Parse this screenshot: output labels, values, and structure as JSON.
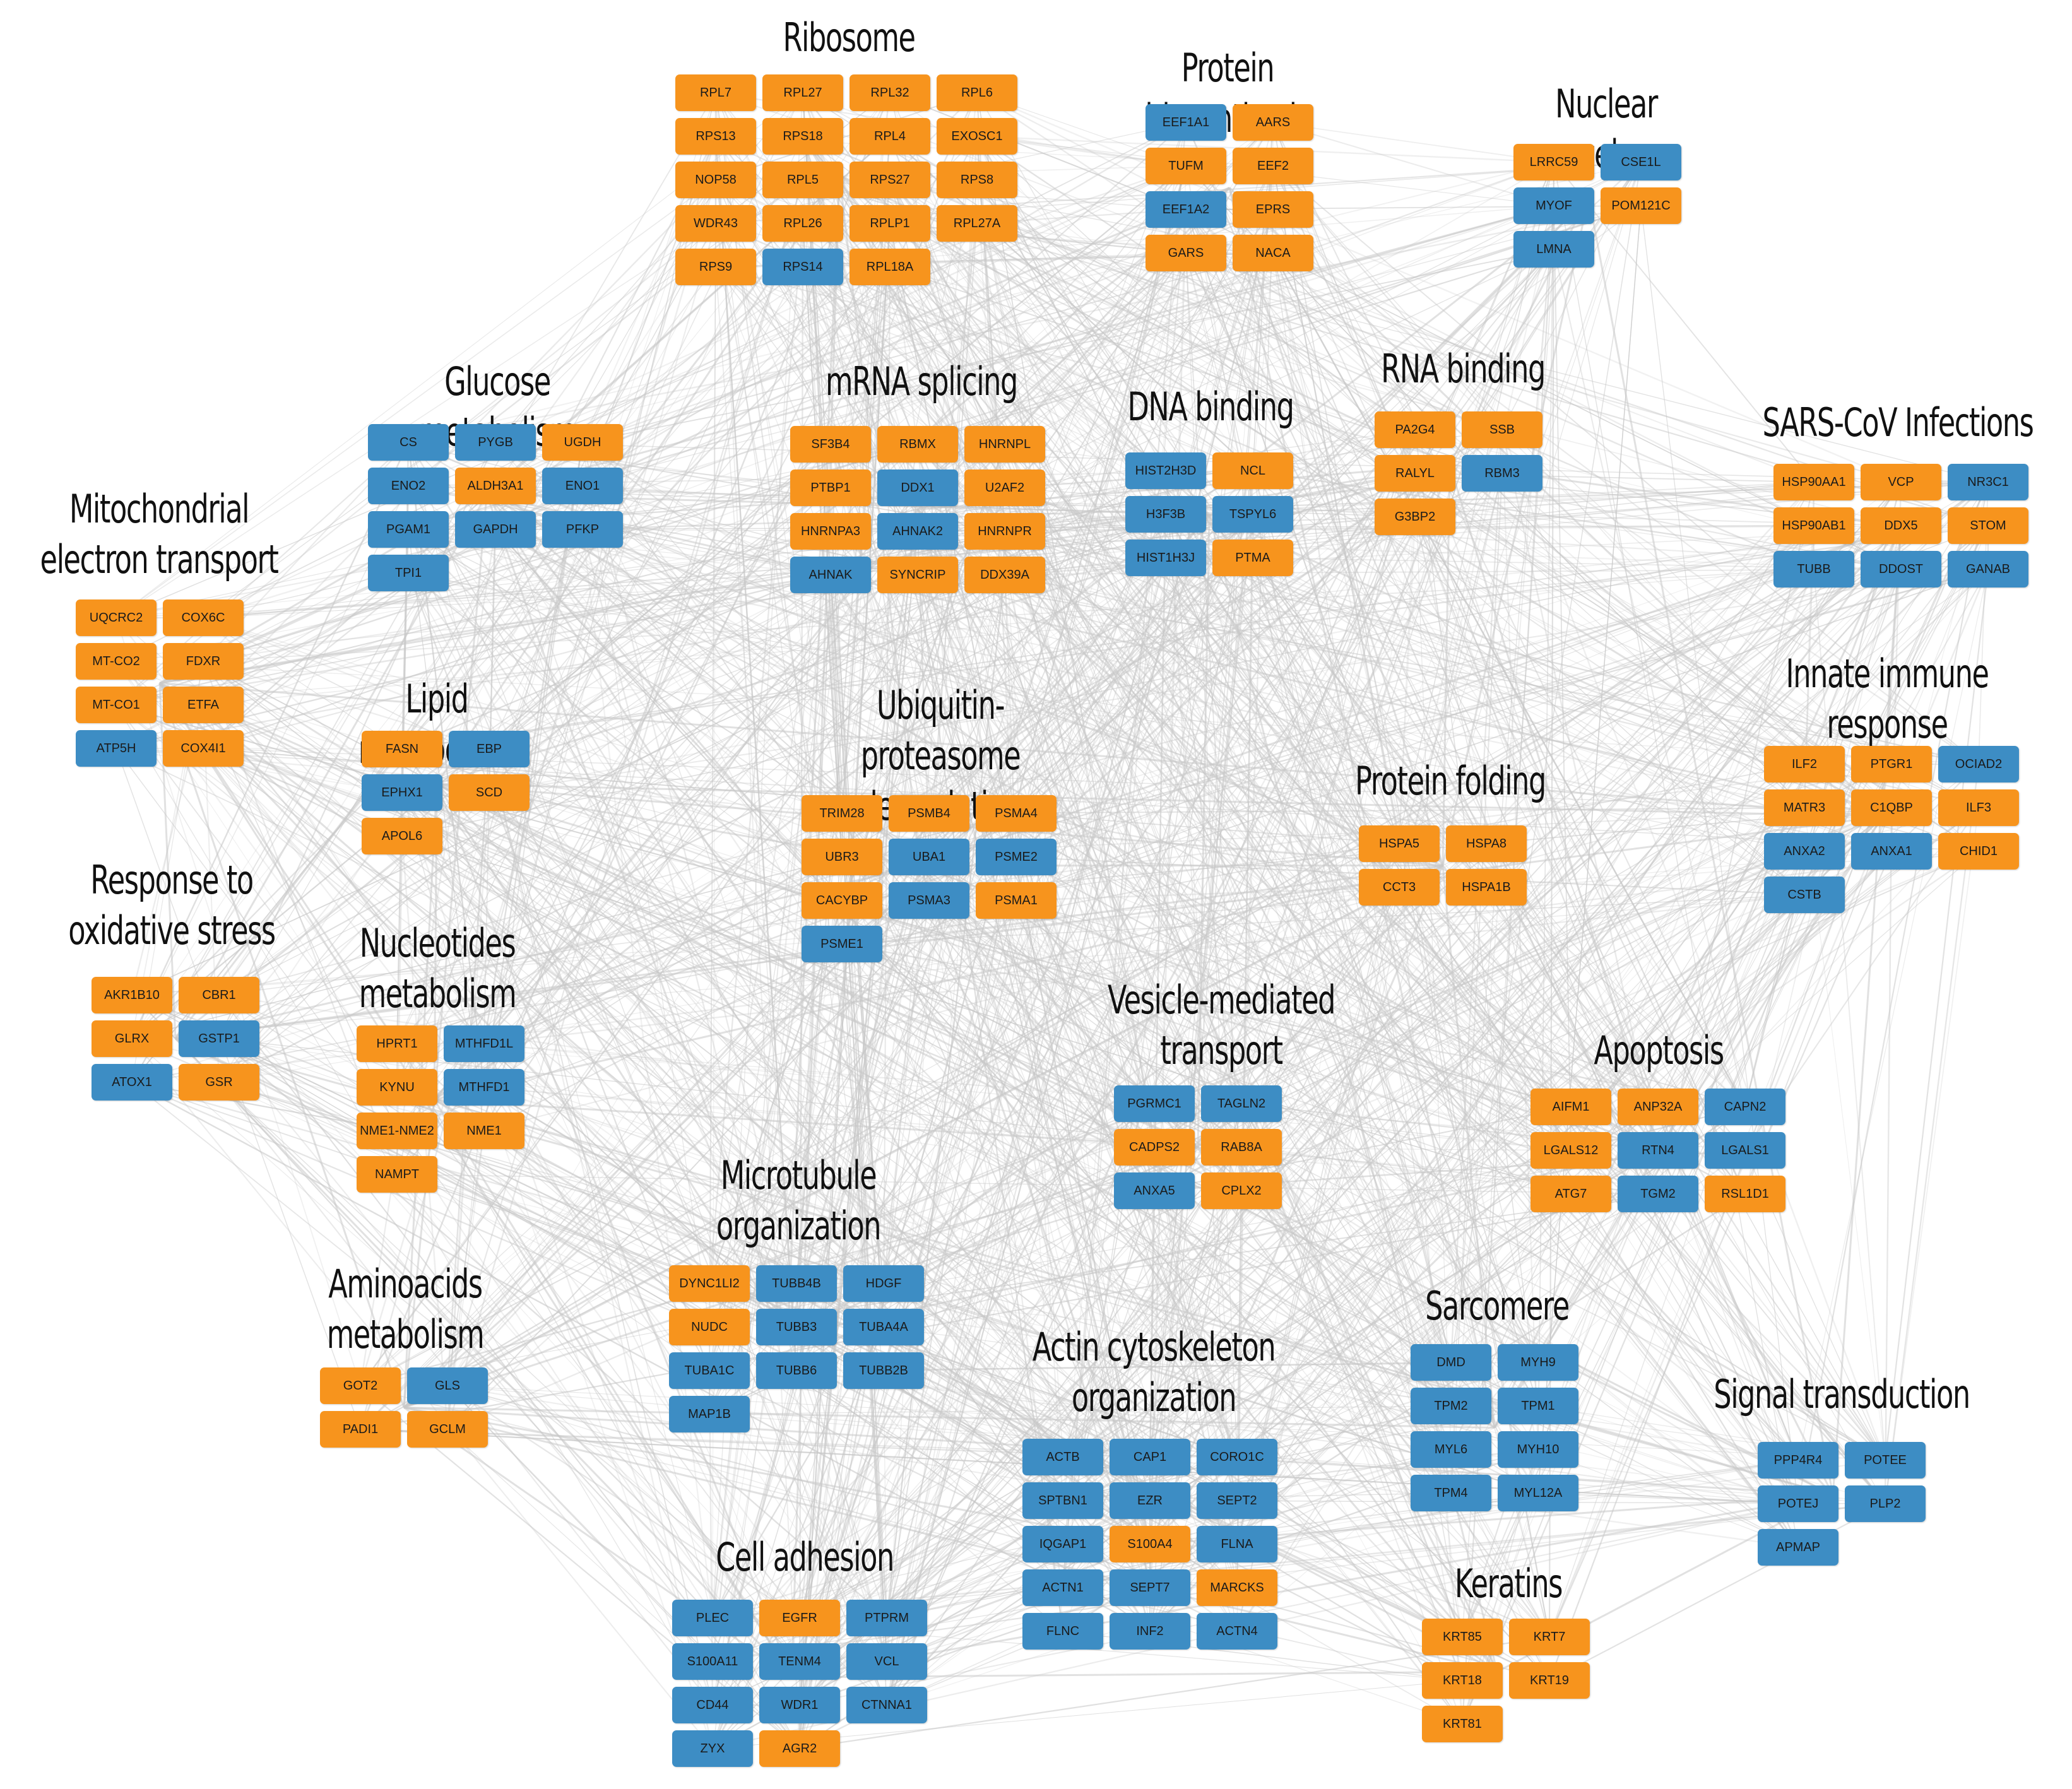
{
  "colors": {
    "orange": "#F7941D",
    "blue": "#3D8DC4",
    "edge": "#C8C8C8"
  },
  "clusters": [
    {
      "id": "ribosome",
      "title": "Ribosome",
      "cols": 4,
      "genes": [
        [
          "RPL7",
          "o"
        ],
        [
          "RPL27",
          "o"
        ],
        [
          "RPL32",
          "o"
        ],
        [
          "RPL6",
          "o"
        ],
        [
          "RPS13",
          "o"
        ],
        [
          "RPS18",
          "o"
        ],
        [
          "RPL4",
          "o"
        ],
        [
          "EXOSC1",
          "o"
        ],
        [
          "NOP58",
          "o"
        ],
        [
          "RPL5",
          "o"
        ],
        [
          "RPS27",
          "o"
        ],
        [
          "RPS8",
          "o"
        ],
        [
          "WDR43",
          "o"
        ],
        [
          "RPL26",
          "o"
        ],
        [
          "RPLP1",
          "o"
        ],
        [
          "RPL27A",
          "o"
        ],
        [
          "RPS9",
          "o"
        ],
        [
          "RPS14",
          "b"
        ],
        [
          "RPL18A",
          "o"
        ]
      ]
    },
    {
      "id": "protein-biosynthesis",
      "title": "Protein biosynthesis",
      "cols": 2,
      "genes": [
        [
          "EEF1A1",
          "b"
        ],
        [
          "AARS",
          "o"
        ],
        [
          "TUFM",
          "o"
        ],
        [
          "EEF2",
          "o"
        ],
        [
          "EEF1A2",
          "b"
        ],
        [
          "EPRS",
          "o"
        ],
        [
          "GARS",
          "o"
        ],
        [
          "NACA",
          "o"
        ]
      ]
    },
    {
      "id": "nuclear-envelope",
      "title": "Nuclear envelope",
      "cols": 2,
      "genes": [
        [
          "LRRC59",
          "o"
        ],
        [
          "CSE1L",
          "b"
        ],
        [
          "MYOF",
          "b"
        ],
        [
          "POM121C",
          "o"
        ],
        [
          "LMNA",
          "b"
        ]
      ]
    },
    {
      "id": "glucose-metabolism",
      "title": "Glucose metabolism",
      "cols": 3,
      "genes": [
        [
          "CS",
          "b"
        ],
        [
          "PYGB",
          "b"
        ],
        [
          "UGDH",
          "o"
        ],
        [
          "ENO2",
          "b"
        ],
        [
          "ALDH3A1",
          "o"
        ],
        [
          "ENO1",
          "b"
        ],
        [
          "PGAM1",
          "b"
        ],
        [
          "GAPDH",
          "b"
        ],
        [
          "PFKP",
          "b"
        ],
        [
          "TPI1",
          "b"
        ]
      ]
    },
    {
      "id": "mrna-splicing",
      "title": "mRNA splicing",
      "cols": 3,
      "genes": [
        [
          "SF3B4",
          "o"
        ],
        [
          "RBMX",
          "o"
        ],
        [
          "HNRNPL",
          "o"
        ],
        [
          "PTBP1",
          "o"
        ],
        [
          "DDX1",
          "b"
        ],
        [
          "U2AF2",
          "o"
        ],
        [
          "HNRNPA3",
          "o"
        ],
        [
          "AHNAK2",
          "b"
        ],
        [
          "HNRNPR",
          "o"
        ],
        [
          "AHNAK",
          "b"
        ],
        [
          "SYNCRIP",
          "o"
        ],
        [
          "DDX39A",
          "o"
        ]
      ]
    },
    {
      "id": "dna-binding",
      "title": "DNA binding",
      "cols": 2,
      "genes": [
        [
          "HIST2H3D",
          "b"
        ],
        [
          "NCL",
          "o"
        ],
        [
          "H3F3B",
          "b"
        ],
        [
          "TSPYL6",
          "b"
        ],
        [
          "HIST1H3J",
          "b"
        ],
        [
          "PTMA",
          "o"
        ]
      ]
    },
    {
      "id": "rna-binding",
      "title": "RNA binding",
      "cols": 2,
      "genes": [
        [
          "PA2G4",
          "o"
        ],
        [
          "SSB",
          "o"
        ],
        [
          "RALYL",
          "o"
        ],
        [
          "RBM3",
          "b"
        ],
        [
          "G3BP2",
          "o"
        ]
      ]
    },
    {
      "id": "sars-cov-infections",
      "title": "SARS-CoV Infections",
      "cols": 3,
      "genes": [
        [
          "HSP90AA1",
          "o"
        ],
        [
          "VCP",
          "o"
        ],
        [
          "NR3C1",
          "b"
        ],
        [
          "HSP90AB1",
          "o"
        ],
        [
          "DDX5",
          "o"
        ],
        [
          "STOM",
          "o"
        ],
        [
          "TUBB",
          "b"
        ],
        [
          "DDOST",
          "b"
        ],
        [
          "GANAB",
          "b"
        ]
      ]
    },
    {
      "id": "mitochondrial-electron-transport",
      "title": "Mitochondrial\nelectron transport",
      "cols": 2,
      "genes": [
        [
          "UQCRC2",
          "o"
        ],
        [
          "COX6C",
          "o"
        ],
        [
          "MT-CO2",
          "o"
        ],
        [
          "FDXR",
          "o"
        ],
        [
          "MT-CO1",
          "o"
        ],
        [
          "ETFA",
          "o"
        ],
        [
          "ATP5H",
          "b"
        ],
        [
          "COX4I1",
          "o"
        ]
      ]
    },
    {
      "id": "lipid-metabolism",
      "title": "Lipid metabolism",
      "cols": 2,
      "genes": [
        [
          "FASN",
          "o"
        ],
        [
          "EBP",
          "b"
        ],
        [
          "EPHX1",
          "b"
        ],
        [
          "SCD",
          "o"
        ],
        [
          "APOL6",
          "o"
        ]
      ]
    },
    {
      "id": "ubiquitin-proteasome-degradation",
      "title": "Ubiquitin-proteasome\ndegradation",
      "cols": 3,
      "genes": [
        [
          "TRIM28",
          "o"
        ],
        [
          "PSMB4",
          "o"
        ],
        [
          "PSMA4",
          "o"
        ],
        [
          "UBR3",
          "o"
        ],
        [
          "UBA1",
          "b"
        ],
        [
          "PSME2",
          "b"
        ],
        [
          "CACYBP",
          "o"
        ],
        [
          "PSMA3",
          "b"
        ],
        [
          "PSMA1",
          "o"
        ],
        [
          "PSME1",
          "b"
        ]
      ]
    },
    {
      "id": "innate-immune-response",
      "title": "Innate immune\nresponse",
      "cols": 3,
      "genes": [
        [
          "ILF2",
          "o"
        ],
        [
          "PTGR1",
          "o"
        ],
        [
          "OCIAD2",
          "b"
        ],
        [
          "MATR3",
          "o"
        ],
        [
          "C1QBP",
          "o"
        ],
        [
          "ILF3",
          "o"
        ],
        [
          "ANXA2",
          "b"
        ],
        [
          "ANXA1",
          "b"
        ],
        [
          "CHID1",
          "o"
        ],
        [
          "CSTB",
          "b"
        ]
      ]
    },
    {
      "id": "protein-folding",
      "title": "Protein folding",
      "cols": 2,
      "genes": [
        [
          "HSPA5",
          "o"
        ],
        [
          "HSPA8",
          "o"
        ],
        [
          "CCT3",
          "o"
        ],
        [
          "HSPA1B",
          "o"
        ]
      ]
    },
    {
      "id": "response-to-oxidative-stress",
      "title": "Response to\noxidative stress",
      "cols": 2,
      "genes": [
        [
          "AKR1B10",
          "o"
        ],
        [
          "CBR1",
          "o"
        ],
        [
          "GLRX",
          "o"
        ],
        [
          "GSTP1",
          "b"
        ],
        [
          "ATOX1",
          "b"
        ],
        [
          "GSR",
          "o"
        ]
      ]
    },
    {
      "id": "nucleotides-metabolism",
      "title": "Nucleotides\nmetabolism",
      "cols": 2,
      "genes": [
        [
          "HPRT1",
          "o"
        ],
        [
          "MTHFD1L",
          "b"
        ],
        [
          "KYNU",
          "o"
        ],
        [
          "MTHFD1",
          "b"
        ],
        [
          "NME1-NME2",
          "o"
        ],
        [
          "NME1",
          "o"
        ],
        [
          "NAMPT",
          "o"
        ]
      ]
    },
    {
      "id": "vesicle-mediated-transport",
      "title": "Vesicle-mediated\ntransport",
      "cols": 2,
      "genes": [
        [
          "PGRMC1",
          "b"
        ],
        [
          "TAGLN2",
          "b"
        ],
        [
          "CADPS2",
          "o"
        ],
        [
          "RAB8A",
          "o"
        ],
        [
          "ANXA5",
          "b"
        ],
        [
          "CPLX2",
          "o"
        ]
      ]
    },
    {
      "id": "apoptosis",
      "title": "Apoptosis",
      "cols": 3,
      "genes": [
        [
          "AIFM1",
          "o"
        ],
        [
          "ANP32A",
          "o"
        ],
        [
          "CAPN2",
          "b"
        ],
        [
          "LGALS12",
          "o"
        ],
        [
          "RTN4",
          "b"
        ],
        [
          "LGALS1",
          "b"
        ],
        [
          "ATG7",
          "o"
        ],
        [
          "TGM2",
          "b"
        ],
        [
          "RSL1D1",
          "o"
        ]
      ]
    },
    {
      "id": "microtubule-organization",
      "title": "Microtubule\norganization",
      "cols": 3,
      "genes": [
        [
          "DYNC1LI2",
          "o"
        ],
        [
          "TUBB4B",
          "b"
        ],
        [
          "HDGF",
          "b"
        ],
        [
          "NUDC",
          "o"
        ],
        [
          "TUBB3",
          "b"
        ],
        [
          "TUBA4A",
          "b"
        ],
        [
          "TUBA1C",
          "b"
        ],
        [
          "TUBB6",
          "b"
        ],
        [
          "TUBB2B",
          "b"
        ],
        [
          "MAP1B",
          "b"
        ]
      ]
    },
    {
      "id": "aminoacids-metabolism",
      "title": "Aminoacids\nmetabolism",
      "cols": 2,
      "genes": [
        [
          "GOT2",
          "o"
        ],
        [
          "GLS",
          "b"
        ],
        [
          "PADI1",
          "o"
        ],
        [
          "GCLM",
          "o"
        ]
      ]
    },
    {
      "id": "sarcomere",
      "title": "Sarcomere",
      "cols": 2,
      "genes": [
        [
          "DMD",
          "b"
        ],
        [
          "MYH9",
          "b"
        ],
        [
          "TPM2",
          "b"
        ],
        [
          "TPM1",
          "b"
        ],
        [
          "MYL6",
          "b"
        ],
        [
          "MYH10",
          "b"
        ],
        [
          "TPM4",
          "b"
        ],
        [
          "MYL12A",
          "b"
        ]
      ]
    },
    {
      "id": "actin-cytoskeleton-organization",
      "title": "Actin cytoskeleton\norganization",
      "cols": 3,
      "genes": [
        [
          "ACTB",
          "b"
        ],
        [
          "CAP1",
          "b"
        ],
        [
          "CORO1C",
          "b"
        ],
        [
          "SPTBN1",
          "b"
        ],
        [
          "EZR",
          "b"
        ],
        [
          "SEPT2",
          "b"
        ],
        [
          "IQGAP1",
          "b"
        ],
        [
          "S100A4",
          "o"
        ],
        [
          "FLNA",
          "b"
        ],
        [
          "ACTN1",
          "b"
        ],
        [
          "SEPT7",
          "b"
        ],
        [
          "MARCKS",
          "o"
        ],
        [
          "FLNC",
          "b"
        ],
        [
          "INF2",
          "b"
        ],
        [
          "ACTN4",
          "b"
        ]
      ]
    },
    {
      "id": "signal-transduction",
      "title": "Signal transduction",
      "cols": 2,
      "genes": [
        [
          "PPP4R4",
          "b"
        ],
        [
          "POTEE",
          "b"
        ],
        [
          "POTEJ",
          "b"
        ],
        [
          "PLP2",
          "b"
        ],
        [
          "APMAP",
          "b"
        ]
      ]
    },
    {
      "id": "cell-adhesion",
      "title": "Cell adhesion",
      "cols": 3,
      "genes": [
        [
          "PLEC",
          "b"
        ],
        [
          "EGFR",
          "o"
        ],
        [
          "PTPRM",
          "b"
        ],
        [
          "S100A11",
          "b"
        ],
        [
          "TENM4",
          "b"
        ],
        [
          "VCL",
          "b"
        ],
        [
          "CD44",
          "b"
        ],
        [
          "WDR1",
          "b"
        ],
        [
          "CTNNA1",
          "b"
        ],
        [
          "ZYX",
          "b"
        ],
        [
          "AGR2",
          "o"
        ]
      ]
    },
    {
      "id": "keratins",
      "title": "Keratins",
      "cols": 2,
      "genes": [
        [
          "KRT85",
          "o"
        ],
        [
          "KRT7",
          "o"
        ],
        [
          "KRT18",
          "o"
        ],
        [
          "KRT19",
          "o"
        ],
        [
          "KRT81",
          "o"
        ]
      ]
    }
  ]
}
